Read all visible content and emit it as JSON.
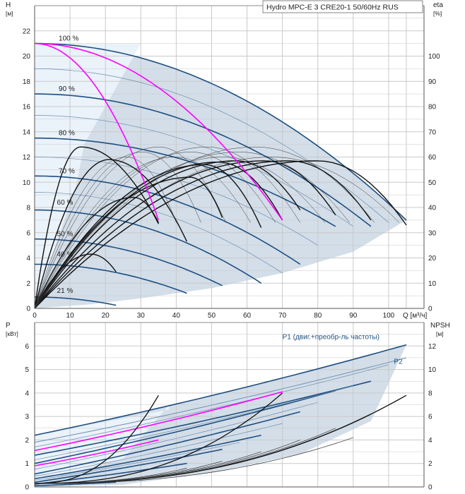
{
  "chart_data": [
    {
      "type": "line",
      "title": "Hydro MPC-E 3 CRE20-1 50/60Hz RUS",
      "xlabel": "Q [м³/ч]",
      "ylabel_left": "H",
      "ylabel_left_unit": "[м]",
      "ylabel_right": "eta",
      "ylabel_right_unit": "[%]",
      "xlim": [
        0,
        110
      ],
      "ylim_left": [
        0,
        24
      ],
      "ylim_right": [
        0,
        120
      ],
      "x_ticks": [
        0,
        10,
        20,
        30,
        40,
        50,
        60,
        70,
        80,
        90,
        100
      ],
      "y_ticks_left": [
        0,
        2,
        4,
        6,
        8,
        10,
        12,
        14,
        16,
        18,
        20,
        22
      ],
      "y_ticks_right": [
        0,
        10,
        20,
        30,
        40,
        50,
        60,
        70,
        80,
        90,
        100
      ],
      "grid": true,
      "speed_labels": [
        {
          "label": "100 %",
          "x": 6.8,
          "h": 21.0
        },
        {
          "label": "90 %",
          "x": 6.8,
          "h": 17.0
        },
        {
          "label": "80 %",
          "x": 6.8,
          "h": 13.5
        },
        {
          "label": "70 %",
          "x": 6.8,
          "h": 10.5
        },
        {
          "label": "60 %",
          "x": 6.3,
          "h": 8.0
        },
        {
          "label": "50 %",
          "x": 6.3,
          "h": 5.5
        },
        {
          "label": "40 %",
          "x": 6.3,
          "h": 3.9
        },
        {
          "label": "21 %",
          "x": 6.3,
          "h": 1.0
        }
      ],
      "head_curves": [
        {
          "speed": 100,
          "h0": 21.0,
          "qmax": 105,
          "hend": 7.0
        },
        {
          "speed": 90,
          "h0": 17.0,
          "qmax": 95,
          "hend": 6.5
        },
        {
          "speed": 80,
          "h0": 13.5,
          "qmax": 85,
          "hend": 6.5
        },
        {
          "speed": 70,
          "h0": 10.5,
          "qmax": 75,
          "hend": 3.5
        },
        {
          "speed": 60,
          "h0": 7.8,
          "qmax": 64,
          "hend": 2.0
        },
        {
          "speed": 50,
          "h0": 5.5,
          "qmax": 53,
          "hend": 1.8
        },
        {
          "speed": 40,
          "h0": 3.5,
          "qmax": 43,
          "hend": 1.2
        },
        {
          "speed": 21,
          "h0": 0.9,
          "qmax": 23,
          "hend": 0.25
        }
      ],
      "magenta_curves": [
        {
          "h0": 21.0,
          "qmax": 35,
          "hend": 7.0
        },
        {
          "h0": 21.0,
          "qmax": 70,
          "hend": 7.0
        }
      ],
      "efficiency_curves": [
        {
          "qmax": 23,
          "peak_q": 16,
          "peak_eta": 21.5,
          "end_eta": 14.5
        },
        {
          "qmax": 35,
          "peak_q": 13,
          "peak_eta": 64,
          "end_eta": 33.5
        },
        {
          "qmax": 35,
          "peak_q": 28,
          "peak_eta": 44,
          "end_eta": 34
        },
        {
          "qmax": 43,
          "peak_q": 21,
          "peak_eta": 59,
          "end_eta": 26.5
        },
        {
          "qmax": 53,
          "peak_q": 44,
          "peak_eta": 52,
          "end_eta": 36
        },
        {
          "qmax": 64,
          "peak_q": 48,
          "peak_eta": 57,
          "end_eta": 32
        },
        {
          "qmax": 70,
          "peak_q": 52,
          "peak_eta": 58,
          "end_eta": 35
        },
        {
          "qmax": 75,
          "peak_q": 57,
          "peak_eta": 58.5,
          "end_eta": 39
        },
        {
          "qmax": 85,
          "peak_q": 65,
          "peak_eta": 58.5,
          "end_eta": 37
        },
        {
          "qmax": 95,
          "peak_q": 72,
          "peak_eta": 58.5,
          "end_eta": 35
        },
        {
          "qmax": 105,
          "peak_q": 80,
          "peak_eta": 58.5,
          "end_eta": 33
        }
      ]
    },
    {
      "type": "line",
      "xlabel": "Q [м³/ч]",
      "ylabel_left": "P",
      "ylabel_left_unit": "[кВт]",
      "ylabel_right": "NPSH",
      "ylabel_right_unit": "[м]",
      "xlim": [
        0,
        110
      ],
      "ylim_left": [
        0,
        7
      ],
      "ylim_right": [
        0,
        14
      ],
      "y_ticks_left": [
        0,
        1,
        2,
        3,
        4,
        5,
        6
      ],
      "y_ticks_right": [
        0,
        2,
        4,
        6,
        8,
        10,
        12
      ],
      "grid": true,
      "annotations": [
        {
          "text": "P1 (двиг.+преобр-ль частоты)",
          "x": 70,
          "p": 6.3
        },
        {
          "text": "P2",
          "x": 101.5,
          "p": 5.25
        }
      ],
      "power_curves": [
        {
          "name": "P1",
          "p0": 2.2,
          "qmax": 105,
          "pend": 6.05
        },
        {
          "name": "P2",
          "p0": 1.9,
          "qmax": 105,
          "pend": 5.5
        },
        {
          "p0": 1.35,
          "qmax": 95,
          "pend": 4.5
        },
        {
          "p0": 1.0,
          "qmax": 85,
          "pend": 4.1
        },
        {
          "p0": 0.55,
          "qmax": 75,
          "pend": 3.2
        },
        {
          "p0": 0.35,
          "qmax": 64,
          "pend": 2.2
        },
        {
          "p0": 0.2,
          "qmax": 53,
          "pend": 1.6
        },
        {
          "p0": 0.12,
          "qmax": 43,
          "pend": 1.0
        },
        {
          "p0": 0.05,
          "qmax": 23,
          "pend": 0.2
        }
      ],
      "magenta_power_curves": [
        {
          "p0": 1.55,
          "qmax": 70,
          "pend": 4.05
        },
        {
          "p0": 0.9,
          "qmax": 35,
          "pend": 2.0
        }
      ],
      "npsh_curves": [
        {
          "qmax": 35,
          "nend": 7.8
        },
        {
          "qmax": 70,
          "nend": 8.0
        },
        {
          "qmax": 95,
          "nend": 6.2
        },
        {
          "qmax": 105,
          "nend": 7.8
        }
      ]
    }
  ]
}
